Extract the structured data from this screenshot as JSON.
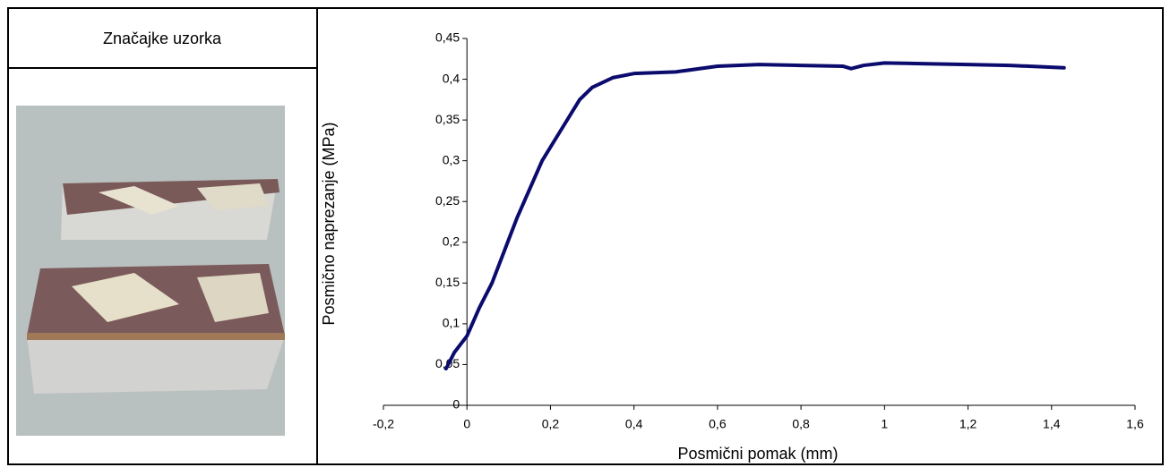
{
  "header": {
    "title": "Značajke uzorka"
  },
  "chart_data": {
    "type": "line",
    "x_label": "Posmični pomak (mm)",
    "y_label": "Posmično naprezanje (MPa)",
    "x": [
      -0.05,
      -0.03,
      0,
      0.03,
      0.06,
      0.09,
      0.12,
      0.15,
      0.18,
      0.21,
      0.24,
      0.27,
      0.3,
      0.35,
      0.4,
      0.5,
      0.6,
      0.7,
      0.8,
      0.9,
      0.92,
      0.95,
      1.0,
      1.1,
      1.2,
      1.3,
      1.43
    ],
    "values": [
      0.045,
      0.065,
      0.085,
      0.12,
      0.15,
      0.19,
      0.23,
      0.265,
      0.3,
      0.325,
      0.35,
      0.375,
      0.39,
      0.402,
      0.407,
      0.409,
      0.416,
      0.418,
      0.417,
      0.416,
      0.413,
      0.417,
      0.42,
      0.419,
      0.418,
      0.417,
      0.414
    ],
    "color": "#0b0b6e",
    "xlim": [
      -0.2,
      1.6
    ],
    "ylim": [
      0,
      0.45
    ],
    "xticks": [
      {
        "value": -0.2,
        "label": "-0,2"
      },
      0,
      {
        "value": 0.2,
        "label": "0,2"
      },
      {
        "value": 0.4,
        "label": "0,4"
      },
      {
        "value": 0.6,
        "label": "0,6"
      },
      {
        "value": 0.8,
        "label": "0,8"
      },
      1,
      {
        "value": 1.2,
        "label": "1,2"
      },
      {
        "value": 1.4,
        "label": "1,4"
      },
      {
        "value": 1.6,
        "label": "1,6"
      }
    ],
    "yticks": [
      0,
      {
        "value": 0.05,
        "label": "0,05"
      },
      {
        "value": 0.1,
        "label": "0,1"
      },
      {
        "value": 0.15,
        "label": "0,15"
      },
      {
        "value": 0.2,
        "label": "0,2"
      },
      {
        "value": 0.25,
        "label": "0,25"
      },
      {
        "value": 0.3,
        "label": "0,3"
      },
      {
        "value": 0.35,
        "label": "0,35"
      },
      {
        "value": 0.4,
        "label": "0,4"
      },
      {
        "value": 0.45,
        "label": "0,45"
      }
    ]
  }
}
